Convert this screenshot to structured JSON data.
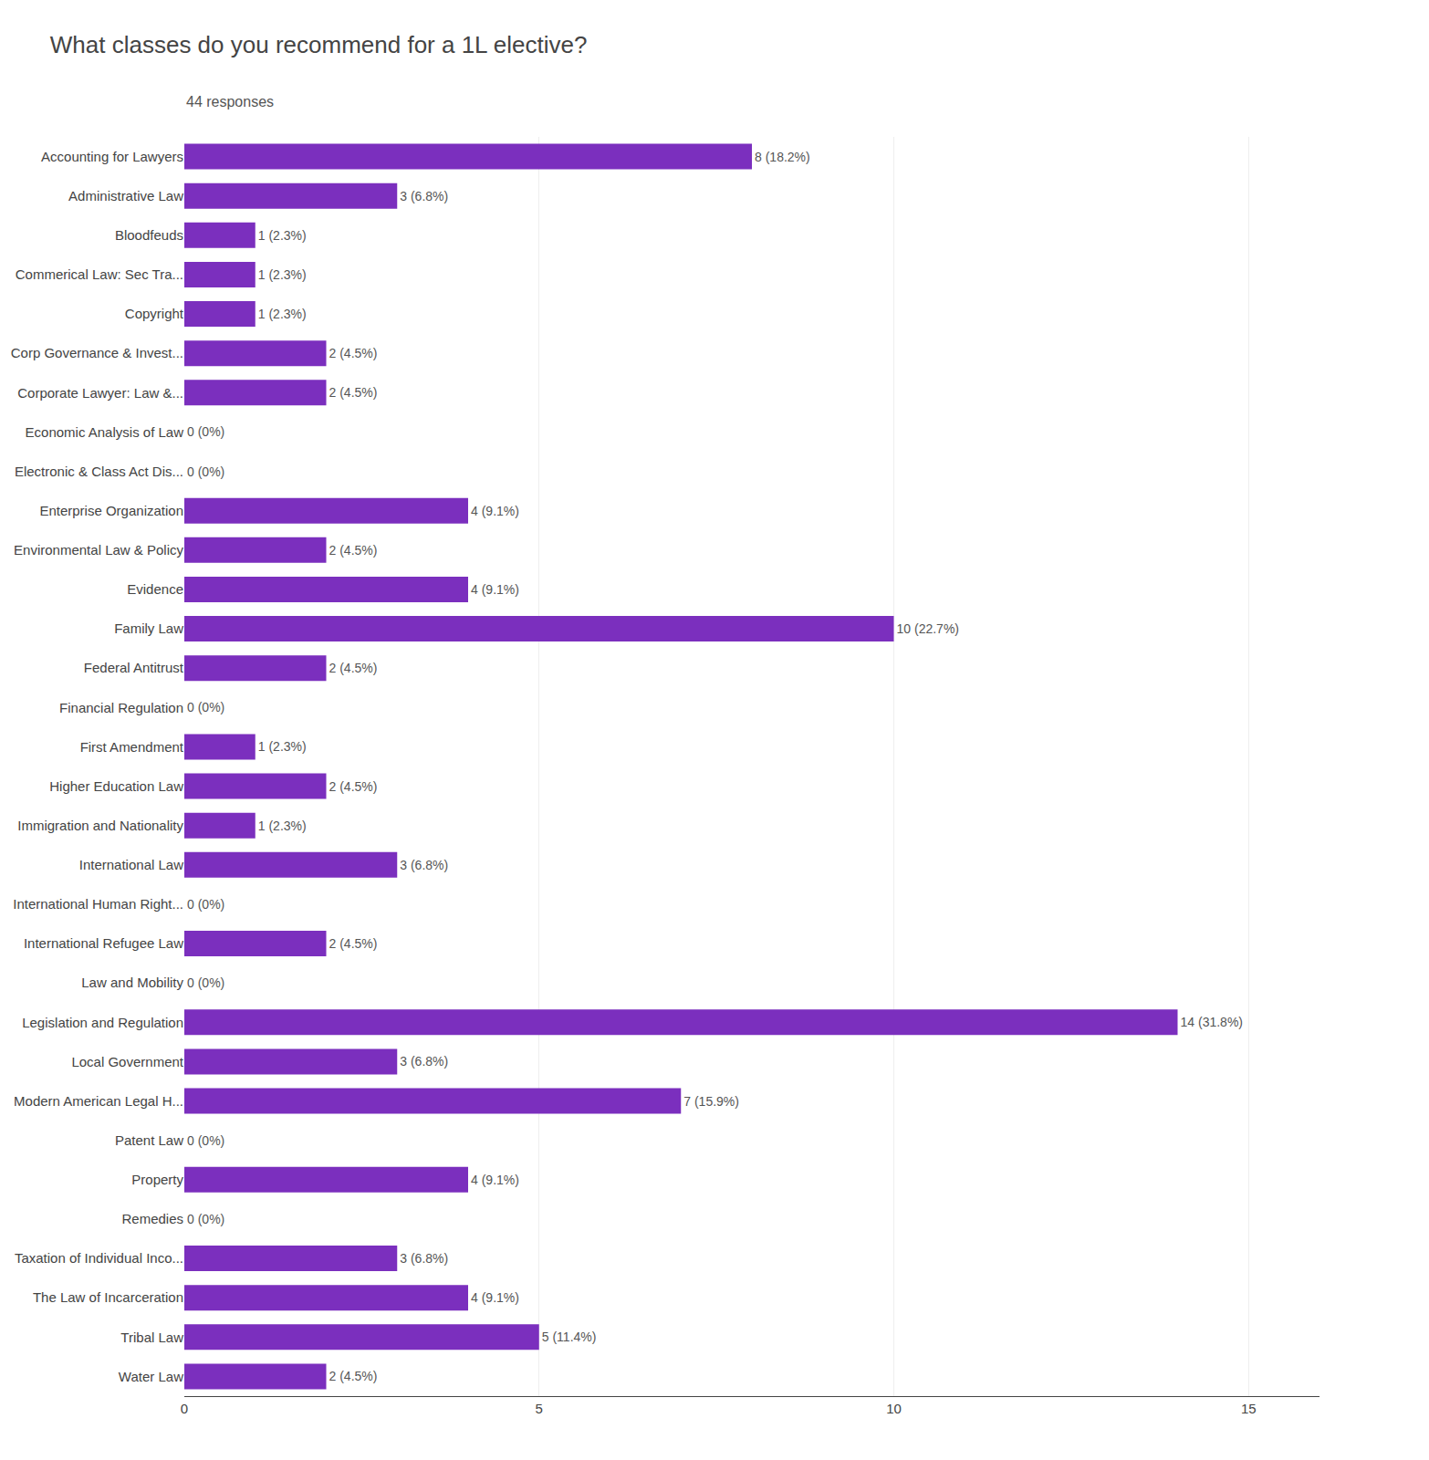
{
  "chart_data": {
    "type": "bar",
    "orientation": "horizontal",
    "title": "What classes do you recommend for a 1L elective?",
    "subtitle": "44 responses",
    "categories": [
      "Accounting for Lawyers",
      "Administrative Law",
      "Bloodfeuds",
      "Commerical Law: Sec Tra...",
      "Copyright",
      "Corp Governance & Invest...",
      "Corporate Lawyer: Law &...",
      "Economic Analysis of Law",
      "Electronic & Class Act Dis...",
      "Enterprise Organization",
      "Environmental Law & Policy",
      "Evidence",
      "Family Law",
      "Federal Antitrust",
      "Financial Regulation",
      "First Amendment",
      "Higher Education Law",
      "Immigration and Nationality",
      "International Law",
      "International Human Right...",
      "International Refugee Law",
      "Law and Mobility",
      "Legislation and Regulation",
      "Local Government",
      "Modern American Legal H...",
      "Patent Law",
      "Property",
      "Remedies",
      "Taxation of Individual Inco...",
      "The Law of Incarceration",
      "Tribal Law",
      "Water Law"
    ],
    "values": [
      8,
      3,
      1,
      1,
      1,
      2,
      2,
      0,
      0,
      4,
      2,
      4,
      10,
      2,
      0,
      1,
      2,
      1,
      3,
      0,
      2,
      0,
      14,
      3,
      7,
      0,
      4,
      0,
      3,
      4,
      5,
      2
    ],
    "value_labels": [
      "8 (18.2%)",
      "3 (6.8%)",
      "1 (2.3%)",
      "1 (2.3%)",
      "1 (2.3%)",
      "2 (4.5%)",
      "2 (4.5%)",
      "0 (0%)",
      "0 (0%)",
      "4 (9.1%)",
      "2 (4.5%)",
      "4 (9.1%)",
      "10 (22.7%)",
      "2 (4.5%)",
      "0 (0%)",
      "1 (2.3%)",
      "2 (4.5%)",
      "1 (2.3%)",
      "3 (6.8%)",
      "0 (0%)",
      "2 (4.5%)",
      "0 (0%)",
      "14 (31.8%)",
      "3 (6.8%)",
      "7 (15.9%)",
      "0 (0%)",
      "4 (9.1%)",
      "0 (0%)",
      "3 (6.8%)",
      "4 (9.1%)",
      "5 (11.4%)",
      "2 (4.5%)"
    ],
    "data_labels": true,
    "color": "#7b2fbe",
    "xlim": [
      0,
      16
    ],
    "xticks": [
      0,
      5,
      10,
      15
    ],
    "grid": true
  }
}
